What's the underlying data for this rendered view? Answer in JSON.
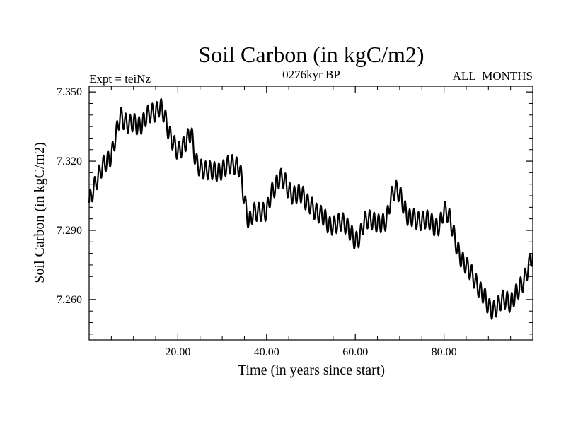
{
  "chart_data": {
    "type": "line",
    "title": "Soil Carbon (in kgC/m2)",
    "subtitle_left": "Expt = teiNz",
    "subtitle_center": "0276kyr BP",
    "subtitle_right": "ALL_MONTHS",
    "xlabel": "Time (in years since start)",
    "ylabel": "Soil Carbon (in kgC/m2)",
    "xlim": [
      0,
      100
    ],
    "ylim": [
      7.2425,
      7.3525
    ],
    "x_ticks": [
      20,
      40,
      60,
      80
    ],
    "x_tick_labels": [
      "20.00",
      "40.00",
      "60.00",
      "80.00"
    ],
    "y_ticks": [
      7.26,
      7.29,
      7.32,
      7.35
    ],
    "y_tick_labels": [
      "7.260",
      "7.290",
      "7.320",
      "7.350"
    ],
    "grid": false,
    "legend": "none",
    "series": [
      {
        "color": "#000000",
        "seasonal_amplitude": 0.004,
        "x": [
          0,
          1,
          2,
          3,
          4,
          5,
          6,
          7,
          8,
          9,
          10,
          11,
          12,
          13,
          14,
          15,
          16,
          17,
          18,
          19,
          20,
          21,
          22,
          23,
          24,
          25,
          26,
          27,
          28,
          29,
          30,
          31,
          32,
          33,
          34,
          35,
          36,
          37,
          38,
          39,
          40,
          41,
          42,
          43,
          44,
          45,
          46,
          47,
          48,
          49,
          50,
          51,
          52,
          53,
          54,
          55,
          56,
          57,
          58,
          59,
          60,
          61,
          62,
          63,
          64,
          65,
          66,
          67,
          68,
          69,
          70,
          71,
          72,
          73,
          74,
          75,
          76,
          77,
          78,
          79,
          80,
          81,
          82,
          83,
          84,
          85,
          86,
          87,
          88,
          89,
          90,
          91,
          92,
          93,
          94,
          95,
          96,
          97,
          98,
          99,
          100
        ],
        "y": [
          7.302,
          7.308,
          7.313,
          7.318,
          7.32,
          7.322,
          7.331,
          7.34,
          7.337,
          7.336,
          7.337,
          7.335,
          7.336,
          7.34,
          7.341,
          7.341,
          7.344,
          7.34,
          7.332,
          7.328,
          7.324,
          7.326,
          7.329,
          7.333,
          7.32,
          7.317,
          7.316,
          7.316,
          7.316,
          7.315,
          7.316,
          7.318,
          7.319,
          7.318,
          7.317,
          7.303,
          7.293,
          7.298,
          7.298,
          7.298,
          7.298,
          7.306,
          7.309,
          7.313,
          7.312,
          7.307,
          7.305,
          7.306,
          7.306,
          7.302,
          7.301,
          7.298,
          7.297,
          7.296,
          7.292,
          7.292,
          7.293,
          7.294,
          7.292,
          7.289,
          7.285,
          7.287,
          7.294,
          7.295,
          7.294,
          7.293,
          7.293,
          7.294,
          7.304,
          7.308,
          7.306,
          7.3,
          7.295,
          7.296,
          7.294,
          7.294,
          7.295,
          7.294,
          7.291,
          7.292,
          7.299,
          7.297,
          7.29,
          7.282,
          7.277,
          7.275,
          7.272,
          7.268,
          7.264,
          7.262,
          7.257,
          7.255,
          7.257,
          7.26,
          7.26,
          7.258,
          7.262,
          7.265,
          7.268,
          7.274,
          7.28
        ]
      }
    ]
  }
}
